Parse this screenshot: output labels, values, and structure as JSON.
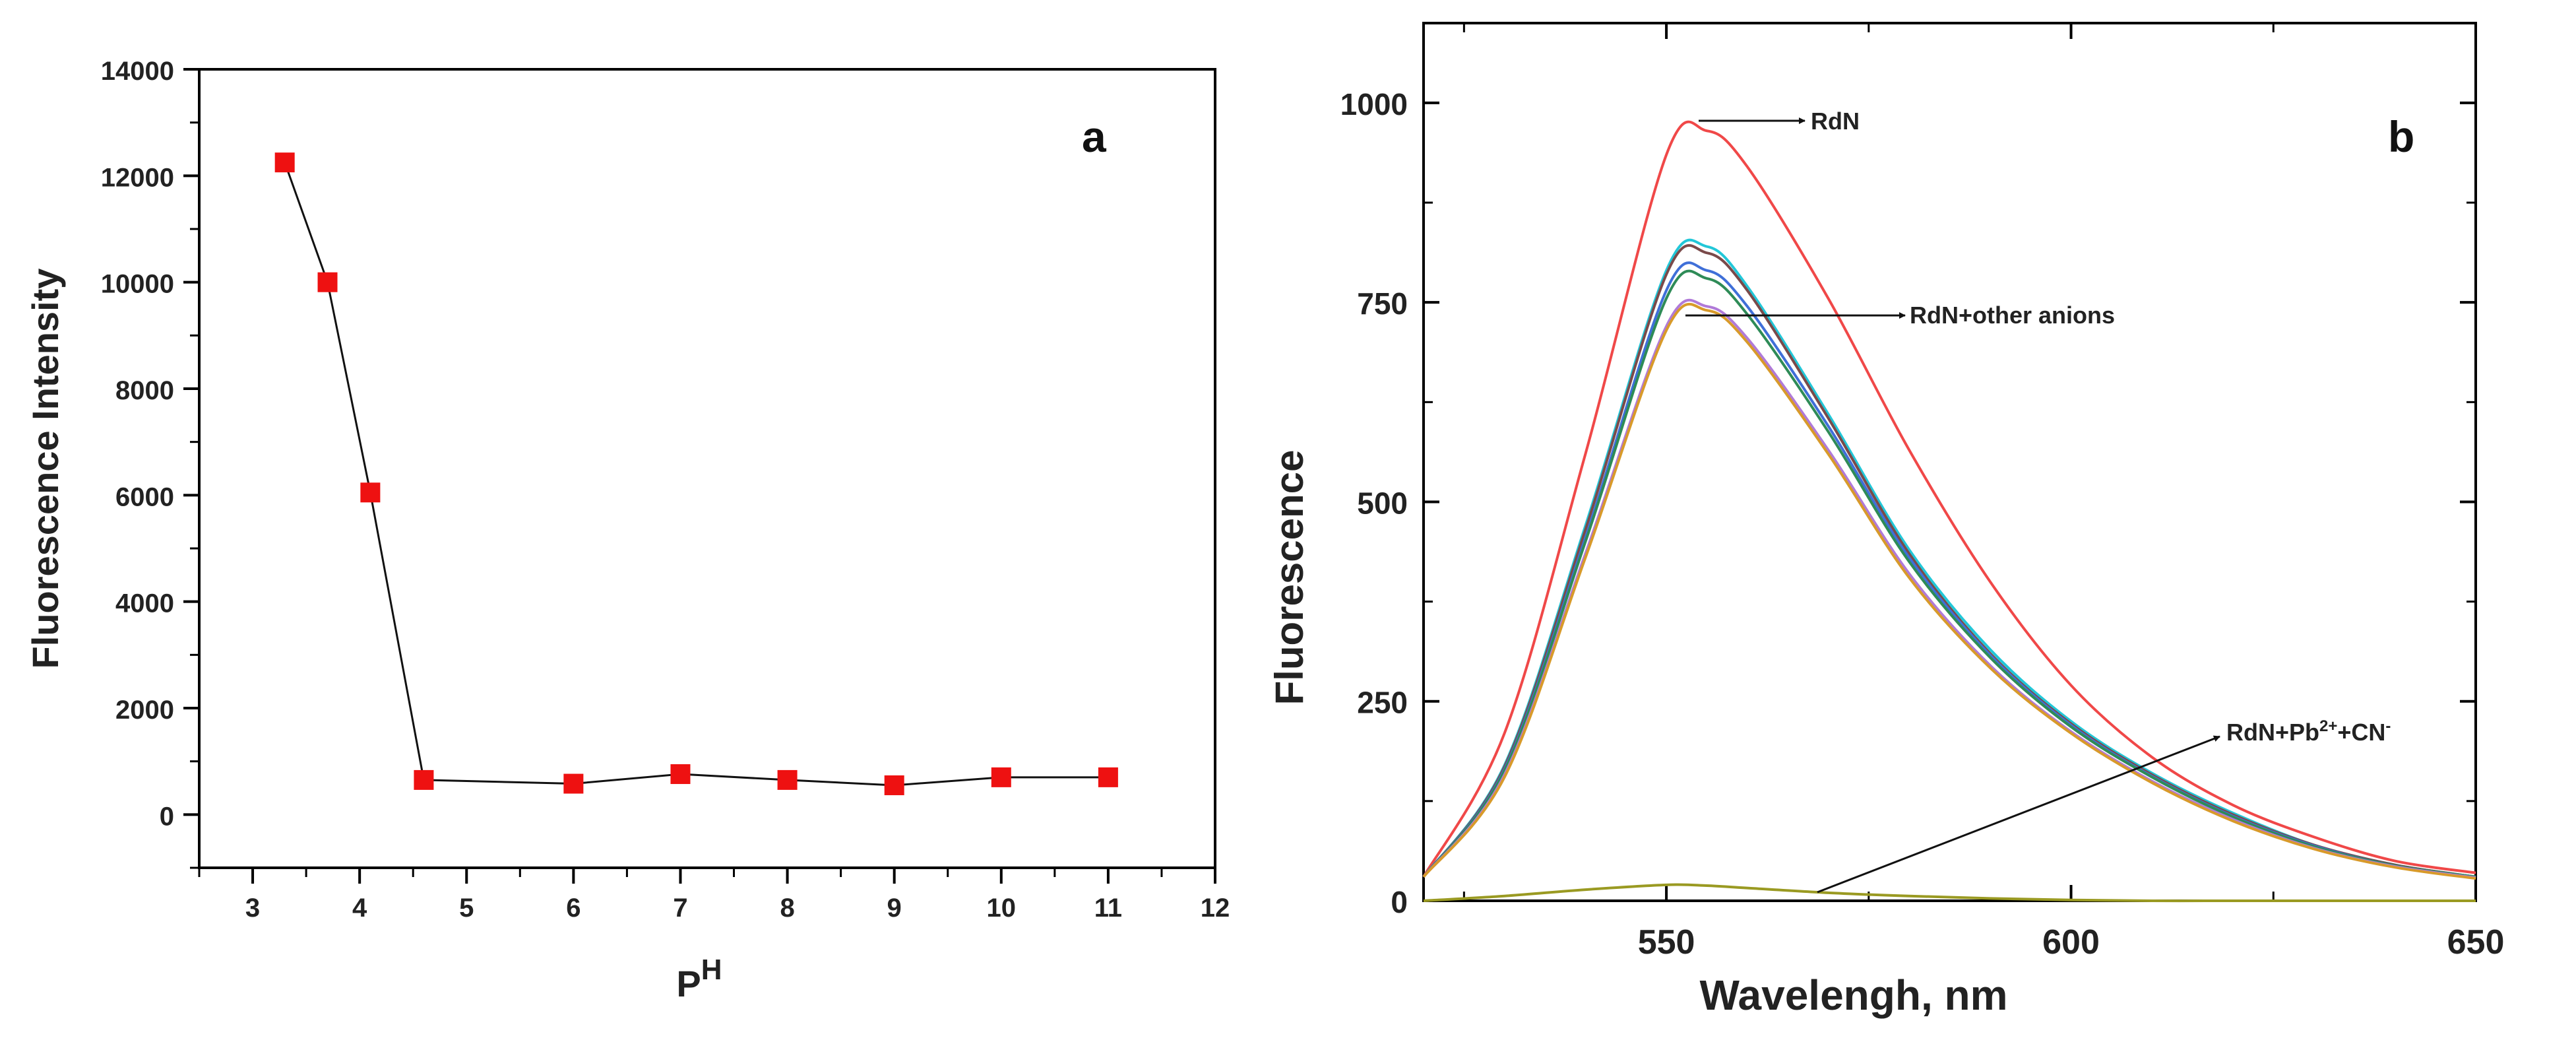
{
  "chart_data": [
    {
      "type": "scatter",
      "panel_label": "a",
      "xlabel": "P",
      "xlabel_superscript": "H",
      "ylabel": "Fluorescence Intensity",
      "xlim": [
        2.5,
        12
      ],
      "ylim": [
        -1000,
        14000
      ],
      "x_ticks": [
        3,
        4,
        5,
        6,
        7,
        8,
        9,
        10,
        11,
        12
      ],
      "y_ticks": [
        0,
        2000,
        4000,
        6000,
        8000,
        10000,
        12000,
        14000
      ],
      "tick_labels_x": [
        "3",
        "4",
        "5",
        "6",
        "7",
        "8",
        "9",
        "10",
        "11",
        "12"
      ],
      "tick_labels_y": [
        "0",
        "2000",
        "4000",
        "6000",
        "8000",
        "10000",
        "12000",
        "14000"
      ],
      "grid": false,
      "connected": true,
      "marker": "square",
      "marker_color": "#ee1111",
      "line_color": "#111111",
      "points": [
        {
          "x": 3.3,
          "y": 12250
        },
        {
          "x": 3.7,
          "y": 10000
        },
        {
          "x": 4.1,
          "y": 6050
        },
        {
          "x": 4.6,
          "y": 650
        },
        {
          "x": 6,
          "y": 580
        },
        {
          "x": 7,
          "y": 760
        },
        {
          "x": 8,
          "y": 650
        },
        {
          "x": 9,
          "y": 550
        },
        {
          "x": 10,
          "y": 700
        },
        {
          "x": 11,
          "y": 700
        }
      ]
    },
    {
      "type": "line",
      "panel_label": "b",
      "xlabel": "Wavelengh, nm",
      "ylabel": "Fluorescence",
      "xlim": [
        520,
        650
      ],
      "ylim": [
        0,
        1100
      ],
      "x_ticks": [
        550,
        600,
        650
      ],
      "x_minor_ticks": [
        525,
        575,
        625
      ],
      "y_ticks": [
        0,
        250,
        500,
        750,
        1000
      ],
      "tick_labels_x": [
        "550",
        "600",
        "650"
      ],
      "tick_labels_y": [
        "0",
        "250",
        "500",
        "750",
        "1000"
      ],
      "grid": false,
      "x": [
        520,
        530,
        540,
        550,
        555,
        560,
        570,
        580,
        590,
        600,
        610,
        620,
        630,
        640,
        650
      ],
      "series": [
        {
          "color": "#f04848",
          "values": [
            30,
            210,
            560,
            935,
            965,
            920,
            755,
            565,
            400,
            270,
            180,
            120,
            80,
            50,
            35
          ]
        },
        {
          "color": "#22c7d8",
          "values": [
            30,
            170,
            470,
            790,
            820,
            770,
            610,
            440,
            315,
            225,
            160,
            110,
            70,
            45,
            30
          ]
        },
        {
          "color": "#7a4a4a",
          "values": [
            30,
            168,
            465,
            785,
            812,
            765,
            605,
            435,
            310,
            222,
            158,
            108,
            70,
            45,
            30
          ]
        },
        {
          "color": "#3f6fd8",
          "values": [
            30,
            165,
            455,
            765,
            790,
            745,
            595,
            430,
            308,
            220,
            156,
            106,
            69,
            44,
            30
          ]
        },
        {
          "color": "#2e8b57",
          "values": [
            30,
            163,
            450,
            755,
            780,
            735,
            588,
            425,
            305,
            218,
            155,
            105,
            68,
            44,
            30
          ]
        },
        {
          "color": "#b07ad8",
          "values": [
            30,
            158,
            435,
            720,
            745,
            705,
            565,
            410,
            295,
            212,
            150,
            102,
            66,
            43,
            29
          ]
        },
        {
          "color": "#d89a2a",
          "values": [
            30,
            155,
            430,
            715,
            740,
            700,
            560,
            405,
            292,
            210,
            148,
            100,
            65,
            42,
            28
          ]
        },
        {
          "color": "#9a9a22",
          "values": [
            0,
            6,
            14,
            20,
            19,
            16,
            10,
            6,
            3,
            1,
            0,
            0,
            0,
            0,
            0
          ]
        }
      ],
      "annotations": [
        {
          "text": "RdN",
          "points_to": {
            "x": 553,
            "y": 970
          }
        },
        {
          "text": "RdN+other anions",
          "points_to": {
            "x": 553,
            "y": 725
          }
        },
        {
          "text": "RdN+Pb",
          "superscript": "2+",
          "text_after": "+CN",
          "superscript_after": "-",
          "points_to": {
            "x": 567,
            "y": 12
          }
        }
      ]
    }
  ]
}
